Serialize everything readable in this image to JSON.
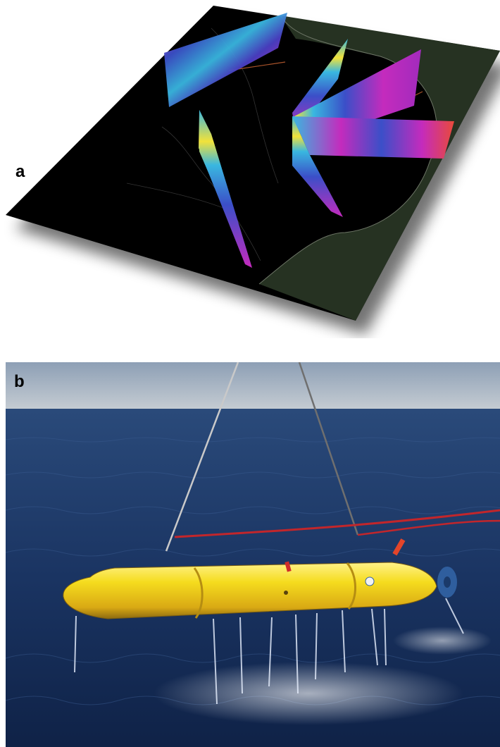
{
  "panel_a": {
    "label": "a"
  },
  "panel_b": {
    "label": "b"
  },
  "colors": {
    "map_land": "#000000",
    "map_sea": "#263222",
    "section_magenta": "#c42bbd",
    "section_blue": "#3b4fc8",
    "section_cyan": "#39b7e0",
    "section_yellow": "#f2e23a",
    "vehicle_yellow": "#f5dc1e",
    "ocean_deep": "#14284f",
    "sky": "#aeb9c6"
  }
}
